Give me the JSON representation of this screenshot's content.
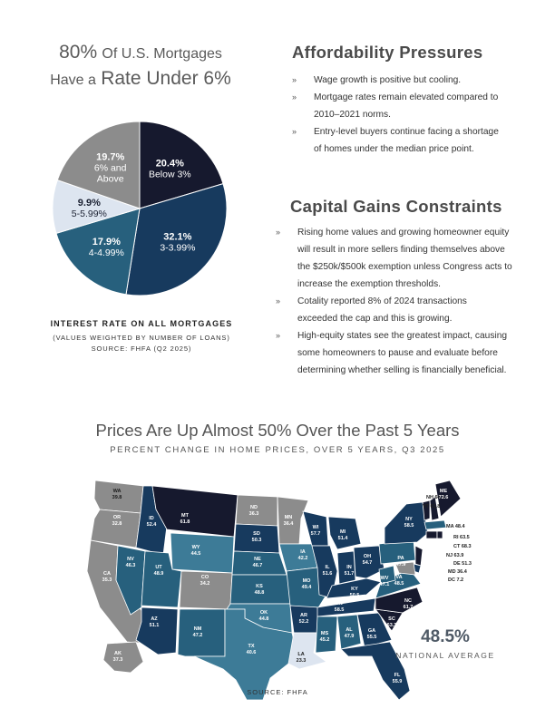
{
  "pie_section": {
    "title_line1_pct": "80%",
    "title_line1_rest": "Of U.S. Mortgages",
    "title_line2_lead": "Have a",
    "title_line2_big": "Rate Under 6%",
    "caption_title": "INTEREST RATE ON ALL MORTGAGES",
    "caption_note": "(VALUES WEIGHTED BY NUMBER OF LOANS)",
    "caption_source": "SOURCE: FHFA (Q2 2025)"
  },
  "affordability": {
    "title": "Affordability Pressures",
    "bullets": [
      {
        "lines": [
          "Wage growth is positive but cooling."
        ]
      },
      {
        "lines": [
          "Mortgage rates remain elevated compared to",
          "2010–2021 norms."
        ]
      },
      {
        "lines": [
          "Entry-level buyers continue facing a shortage",
          "of homes under the median price point."
        ]
      }
    ]
  },
  "capital_gains": {
    "title": "Capital Gains Constraints",
    "bullets": [
      {
        "lines": [
          "Rising home values and growing homeowner equity",
          "will result in more sellers finding themselves above",
          "the $250k/$500k exemption unless Congress acts to",
          "increase the exemption thresholds."
        ]
      },
      {
        "lines": [
          "Cotality reported 8% of 2024 transactions",
          "exceeded the cap and this is growing."
        ]
      },
      {
        "lines": [
          "High-equity states see the greatest impact, causing",
          "some homeowners to pause and evaluate before",
          "determining whether selling is financially beneficial."
        ]
      }
    ]
  },
  "bullet_marker": "»",
  "map_section": {
    "title": "Prices Are Up Almost 50% Over the Past 5 Years",
    "subtitle": "PERCENT CHANGE IN HOME PRICES, OVER 5 YEARS, Q3 2025",
    "national_value": "48.5%",
    "national_label": "NATIONAL AVERAGE",
    "source": "SOURCE: FHFA"
  },
  "colors": {
    "darkest": "#16192e",
    "navy": "#173a5e",
    "teal": "#27607d",
    "light_teal": "#3d7b97",
    "gray": "#8c8c8c",
    "light_gray": "#b7b7b7",
    "pale": "#dde5f0",
    "white": "#ffffff"
  },
  "chart_data": [
    {
      "type": "pie",
      "title": "80% Of U.S. Mortgages Have a Rate Under 6%",
      "subtitle": "INTEREST RATE ON ALL MORTGAGES",
      "slices": [
        {
          "label": "Below 3%",
          "value": 20.4,
          "text": "20.4%",
          "color": "#16192e"
        },
        {
          "label": "3-3.99%",
          "value": 32.1,
          "text": "32.1%",
          "color": "#173a5e"
        },
        {
          "label": "4-4.99%",
          "value": 17.9,
          "text": "17.9%",
          "color": "#27607d"
        },
        {
          "label": "5-5.99%",
          "value": 9.9,
          "text": "9.9%",
          "color": "#dde5f0"
        },
        {
          "label": "6% and Above",
          "value": 19.7,
          "text": "19.7%",
          "color": "#8c8c8c"
        }
      ]
    },
    {
      "type": "map",
      "title": "Prices Are Up Almost 50% Over the Past 5 Years",
      "subtitle": "PERCENT CHANGE IN HOME PRICES, OVER 5 YEARS, Q3 2025",
      "unit": "percent",
      "states": [
        {
          "code": "WA",
          "value": 39.8
        },
        {
          "code": "OR",
          "value": 32.8
        },
        {
          "code": "CA",
          "value": 35.3
        },
        {
          "code": "NV",
          "value": 46.3
        },
        {
          "code": "ID",
          "value": 52.4
        },
        {
          "code": "MT",
          "value": 61.8
        },
        {
          "code": "WY",
          "value": 44.5
        },
        {
          "code": "UT",
          "value": 48.9
        },
        {
          "code": "CO",
          "value": 34.2
        },
        {
          "code": "AZ",
          "value": 51.1
        },
        {
          "code": "NM",
          "value": 47.2
        },
        {
          "code": "ND",
          "value": 36.3
        },
        {
          "code": "SD",
          "value": 50.3
        },
        {
          "code": "NE",
          "value": 46.7
        },
        {
          "code": "KS",
          "value": 48.8
        },
        {
          "code": "OK",
          "value": 44.8
        },
        {
          "code": "TX",
          "value": 40.6
        },
        {
          "code": "MN",
          "value": 36.4
        },
        {
          "code": "IA",
          "value": 42.2
        },
        {
          "code": "MO",
          "value": 49.4
        },
        {
          "code": "AR",
          "value": 52.2
        },
        {
          "code": "LA",
          "value": 23.3
        },
        {
          "code": "WI",
          "value": 57.7
        },
        {
          "code": "IL",
          "value": 51.6
        },
        {
          "code": "MI",
          "value": 51.4
        },
        {
          "code": "IN",
          "value": 51.7
        },
        {
          "code": "OH",
          "value": 54.7
        },
        {
          "code": "KY",
          "value": 50.5
        },
        {
          "code": "TN",
          "value": 58.5
        },
        {
          "code": "MS",
          "value": 45.2
        },
        {
          "code": "AL",
          "value": 47.9
        },
        {
          "code": "GA",
          "value": 55.5
        },
        {
          "code": "FL",
          "value": 55.9
        },
        {
          "code": "SC",
          "value": 63.3
        },
        {
          "code": "NC",
          "value": 61.7
        },
        {
          "code": "VA",
          "value": 48.5
        },
        {
          "code": "WV",
          "value": 47.1
        },
        {
          "code": "PA",
          "value": 47.9
        },
        {
          "code": "NY",
          "value": 58.5
        },
        {
          "code": "VT",
          "value": 61.8
        },
        {
          "code": "NH",
          "value": 64.3
        },
        {
          "code": "ME",
          "value": 72.6
        },
        {
          "code": "MA",
          "value": 48.4
        },
        {
          "code": "RI",
          "value": 63.5
        },
        {
          "code": "CT",
          "value": 68.3
        },
        {
          "code": "NJ",
          "value": 63.9
        },
        {
          "code": "DE",
          "value": 51.3
        },
        {
          "code": "MD",
          "value": 36.4
        },
        {
          "code": "DC",
          "value": 7.2
        },
        {
          "code": "AK",
          "value": 37.3
        }
      ],
      "national_average": 48.5
    }
  ]
}
